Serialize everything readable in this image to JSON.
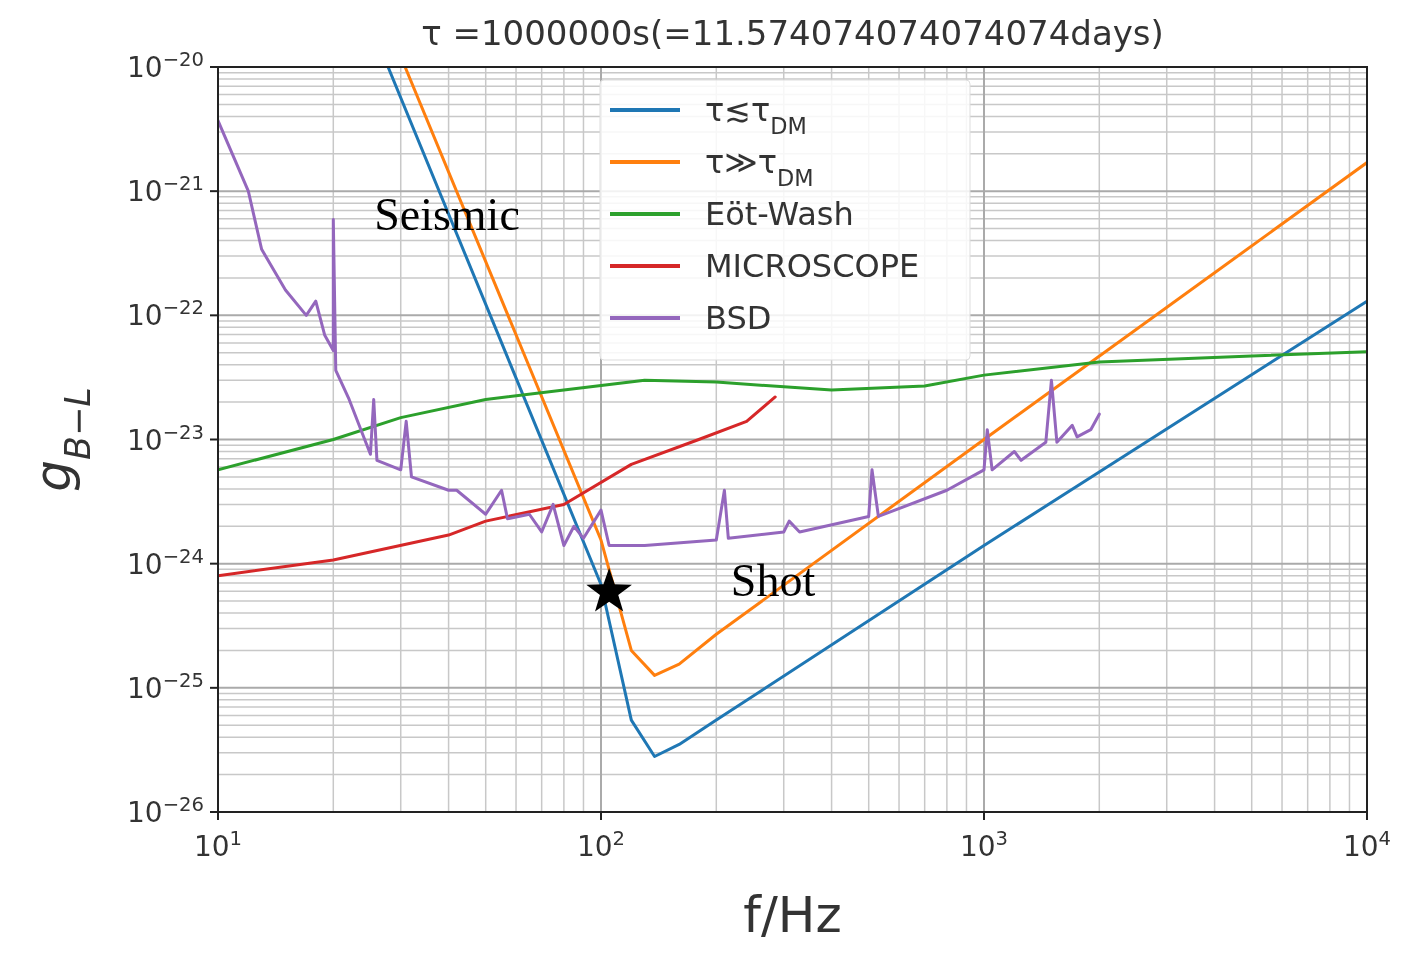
{
  "chart_data": {
    "type": "line",
    "title": "τ =1000000s(=11.574074074074074days)",
    "xlabel": "f/Hz",
    "ylabel": "g$_{B−L}$",
    "log": "xy",
    "grid": true,
    "legend": "top",
    "xlim": [
      10,
      10000
    ],
    "ylim": [
      1e-26,
      1e-20
    ],
    "xticks": [
      {
        "value": 10,
        "label": "10$^{1}$"
      },
      {
        "value": 100,
        "label": "10$^{2}$"
      },
      {
        "value": 1000,
        "label": "10$^{3}$"
      },
      {
        "value": 10000,
        "label": "10$^{4}$"
      }
    ],
    "yticks": [
      {
        "value": 1e-26,
        "label": "10$^{−26}$"
      },
      {
        "value": 1e-25,
        "label": "10$^{−25}$"
      },
      {
        "value": 1e-24,
        "label": "10$^{−24}$"
      },
      {
        "value": 1e-23,
        "label": "10$^{−23}$"
      },
      {
        "value": 1e-22,
        "label": "10$^{−22}$"
      },
      {
        "value": 1e-21,
        "label": "10$^{−21}$"
      },
      {
        "value": 1e-20,
        "label": "10$^{−20}$"
      }
    ],
    "annotations": [
      "Seismic",
      "Shot"
    ],
    "series": [
      {
        "name": "τ≲τ$_{DM}$",
        "color": "#1f77b4",
        "x": [
          27.8,
          100,
          120,
          138,
          160,
          200,
          1000,
          10000
        ],
        "values": [
          1e-20,
          6.8e-25,
          5.5e-26,
          2.8e-26,
          3.5e-26,
          5.5e-26,
          1.4e-24,
          1.3e-22
        ]
      },
      {
        "name": "τ≫τ$_{DM}$",
        "color": "#ff7f0e",
        "x": [
          30.8,
          100,
          120,
          138,
          160,
          200,
          1000,
          10000
        ],
        "values": [
          1e-20,
          1.55e-24,
          2e-25,
          1.26e-25,
          1.55e-25,
          2.7e-25,
          1e-23,
          1.7e-21
        ]
      },
      {
        "name": "Eöt-Wash",
        "color": "#2ca02c",
        "x": [
          10,
          20,
          30,
          50,
          80,
          130,
          200,
          400,
          700,
          1000,
          2000,
          5000,
          10000
        ],
        "values": [
          5.7e-24,
          1e-23,
          1.5e-23,
          2.1e-23,
          2.5e-23,
          3e-23,
          2.9e-23,
          2.5e-23,
          2.7e-23,
          3.3e-23,
          4.2e-23,
          4.7e-23,
          5.1e-23
        ]
      },
      {
        "name": "MICROSCOPE",
        "color": "#d62728",
        "x": [
          10,
          20,
          40,
          50,
          80,
          120,
          180,
          240,
          285
        ],
        "values": [
          8e-25,
          1.07e-24,
          1.7e-24,
          2.2e-24,
          3e-24,
          6.3e-24,
          1e-23,
          1.4e-23,
          2.2e-23
        ]
      },
      {
        "name": "BSD",
        "color": "#9467bd",
        "x": [
          10,
          12,
          13,
          15,
          17,
          18,
          19,
          20,
          20,
          20.3,
          22,
          25,
          25.5,
          26,
          30,
          31,
          32,
          40,
          42,
          50,
          55,
          57,
          65,
          70,
          75,
          80,
          85,
          90,
          100,
          105,
          130,
          200,
          210,
          215,
          300,
          310,
          330,
          500,
          510,
          530,
          800,
          1000,
          1020,
          1050,
          1200,
          1250,
          1450,
          1500,
          1550,
          1700,
          1750,
          1900,
          2000
        ],
        "values": [
          3.7e-21,
          1e-21,
          3.4e-22,
          1.6e-22,
          1e-22,
          1.3e-22,
          6.9e-23,
          5.2e-23,
          5.9e-22,
          3.6e-23,
          2.1e-23,
          7.6e-24,
          2.1e-23,
          6.8e-24,
          5.7e-24,
          1.4e-23,
          5e-24,
          3.9e-24,
          3.9e-24,
          2.5e-24,
          3.9e-24,
          2.3e-24,
          2.5e-24,
          1.8e-24,
          3e-24,
          1.4e-24,
          2e-24,
          1.6e-24,
          2.7e-24,
          1.4e-24,
          1.4e-24,
          1.55e-24,
          3.9e-24,
          1.6e-24,
          1.8e-24,
          2.2e-24,
          1.8e-24,
          2.4e-24,
          5.7e-24,
          2.4e-24,
          3.9e-24,
          5.7e-24,
          1.2e-23,
          5.7e-24,
          8e-24,
          6.8e-24,
          9.5e-24,
          3e-23,
          9.5e-24,
          1.3e-23,
          1.05e-23,
          1.2e-23,
          1.6e-23
        ]
      },
      {
        "type": "scatter",
        "marker": "star",
        "color": "#000000",
        "x": [
          105
        ],
        "values": [
          5.9e-25
        ]
      }
    ]
  }
}
